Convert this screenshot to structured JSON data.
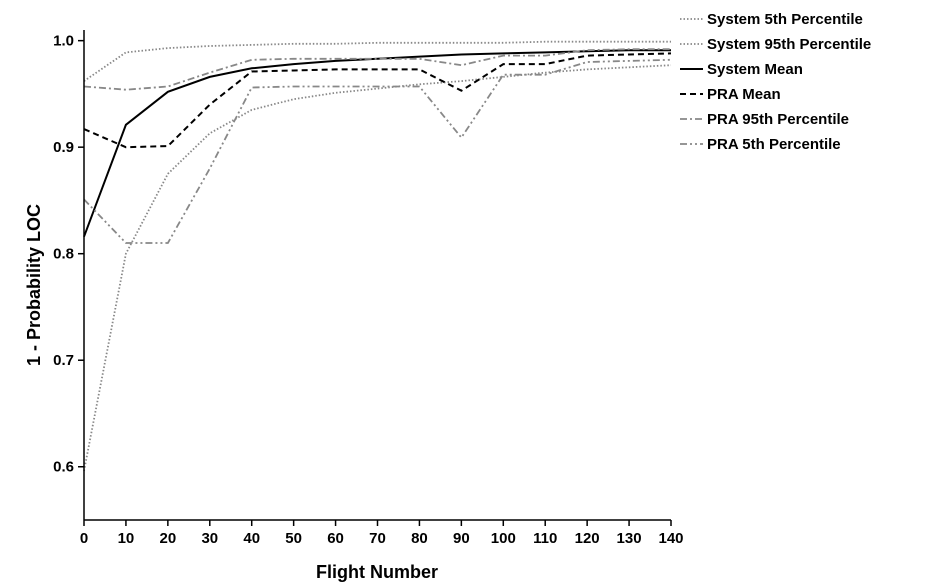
{
  "chart_data": {
    "type": "line",
    "title": "",
    "xlabel": "Flight Number",
    "ylabel": "1 - Probability LOC",
    "xlim": [
      0,
      140
    ],
    "ylim": [
      0.55,
      1.01
    ],
    "x_ticks": [
      0,
      10,
      20,
      30,
      40,
      50,
      60,
      70,
      80,
      90,
      100,
      110,
      120,
      130,
      140
    ],
    "y_ticks": [
      0.6,
      0.7,
      0.8,
      0.9,
      1.0
    ],
    "y_tick_labels": [
      "0.6",
      "0.7",
      "0.8",
      "0.9",
      "1.0"
    ],
    "grid": false,
    "legend_position": "top-right, outside plot",
    "x": [
      0,
      10,
      20,
      30,
      40,
      50,
      60,
      70,
      80,
      90,
      100,
      110,
      120,
      130,
      140
    ],
    "series": [
      {
        "name": "System 5th Percentile",
        "style": "dotted",
        "color": "#888888",
        "values": [
          0.596,
          0.8,
          0.875,
          0.913,
          0.935,
          0.945,
          0.951,
          0.955,
          0.959,
          0.962,
          0.966,
          0.97,
          0.973,
          0.975,
          0.977
        ]
      },
      {
        "name": "System 95th Percentile",
        "style": "dotted",
        "color": "#888888",
        "values": [
          0.962,
          0.989,
          0.993,
          0.995,
          0.996,
          0.997,
          0.997,
          0.998,
          0.998,
          0.998,
          0.998,
          0.999,
          0.999,
          0.999,
          0.999
        ]
      },
      {
        "name": "System Mean",
        "style": "solid",
        "color": "#000000",
        "values": [
          0.816,
          0.921,
          0.952,
          0.966,
          0.974,
          0.978,
          0.981,
          0.983,
          0.985,
          0.987,
          0.988,
          0.989,
          0.99,
          0.991,
          0.991
        ]
      },
      {
        "name": "PRA Mean",
        "style": "dashed",
        "color": "#000000",
        "values": [
          0.917,
          0.9,
          0.901,
          0.94,
          0.971,
          0.972,
          0.973,
          0.973,
          0.973,
          0.953,
          0.978,
          0.978,
          0.986,
          0.987,
          0.988
        ]
      },
      {
        "name": "PRA 95th Percentile",
        "style": "dashdot",
        "color": "#888888",
        "values": [
          0.957,
          0.954,
          0.957,
          0.97,
          0.982,
          0.983,
          0.983,
          0.983,
          0.983,
          0.977,
          0.986,
          0.986,
          0.991,
          0.992,
          0.992
        ]
      },
      {
        "name": "PRA 5th Percentile",
        "style": "dashdotdot",
        "color": "#888888",
        "values": [
          0.851,
          0.81,
          0.81,
          0.88,
          0.956,
          0.957,
          0.957,
          0.957,
          0.957,
          0.909,
          0.968,
          0.968,
          0.98,
          0.981,
          0.982
        ]
      }
    ]
  }
}
